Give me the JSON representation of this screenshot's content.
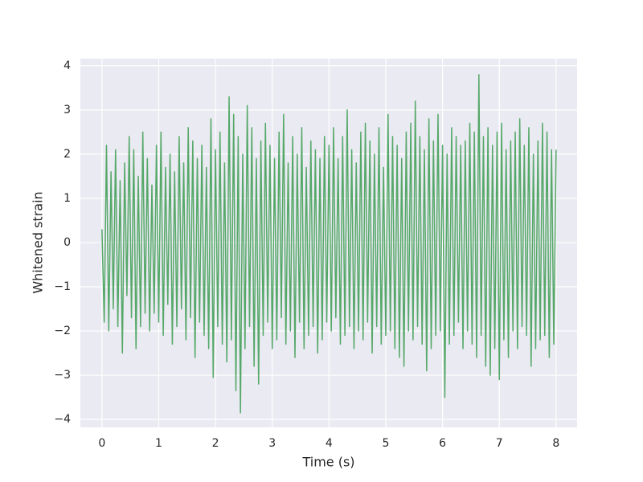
{
  "chart_data": {
    "type": "line",
    "xlabel": "Time (s)",
    "ylabel": "Whitened strain",
    "xlim": [
      -0.38,
      8.37
    ],
    "ylim": [
      -4.18,
      4.16
    ],
    "xticks": [
      0,
      1,
      2,
      3,
      4,
      5,
      6,
      7,
      8
    ],
    "yticks": [
      {
        "value": -4,
        "label": "−4"
      },
      {
        "value": -3,
        "label": "−3"
      },
      {
        "value": -2,
        "label": "−2"
      },
      {
        "value": -1,
        "label": "−1"
      },
      0,
      1,
      2,
      3,
      4
    ],
    "grid": true,
    "x": [
      0,
      0.04,
      0.08,
      0.12,
      0.16,
      0.2,
      0.24,
      0.28,
      0.32,
      0.36,
      0.4,
      0.44,
      0.48,
      0.52,
      0.56,
      0.6,
      0.64,
      0.68,
      0.72,
      0.76,
      0.8,
      0.84,
      0.88,
      0.92,
      0.96,
      1,
      1.04,
      1.08,
      1.12,
      1.16,
      1.2,
      1.24,
      1.28,
      1.32,
      1.36,
      1.4,
      1.44,
      1.48,
      1.52,
      1.56,
      1.6,
      1.64,
      1.68,
      1.72,
      1.76,
      1.8,
      1.84,
      1.88,
      1.92,
      1.96,
      2,
      2.04,
      2.08,
      2.12,
      2.16,
      2.2,
      2.24,
      2.28,
      2.32,
      2.36,
      2.4,
      2.44,
      2.48,
      2.52,
      2.56,
      2.6,
      2.64,
      2.68,
      2.72,
      2.76,
      2.8,
      2.84,
      2.88,
      2.92,
      2.96,
      3,
      3.04,
      3.08,
      3.12,
      3.16,
      3.2,
      3.24,
      3.28,
      3.32,
      3.36,
      3.4,
      3.44,
      3.48,
      3.52,
      3.56,
      3.6,
      3.64,
      3.68,
      3.72,
      3.76,
      3.8,
      3.84,
      3.88,
      3.92,
      3.96,
      4,
      4.04,
      4.08,
      4.12,
      4.16,
      4.2,
      4.24,
      4.28,
      4.32,
      4.36,
      4.4,
      4.44,
      4.48,
      4.52,
      4.56,
      4.6,
      4.64,
      4.68,
      4.72,
      4.76,
      4.8,
      4.84,
      4.88,
      4.92,
      4.96,
      5,
      5.04,
      5.08,
      5.12,
      5.16,
      5.2,
      5.24,
      5.28,
      5.32,
      5.36,
      5.4,
      5.44,
      5.48,
      5.52,
      5.56,
      5.6,
      5.64,
      5.68,
      5.72,
      5.76,
      5.8,
      5.84,
      5.88,
      5.92,
      5.96,
      6,
      6.04,
      6.08,
      6.12,
      6.16,
      6.2,
      6.24,
      6.28,
      6.32,
      6.36,
      6.4,
      6.44,
      6.48,
      6.52,
      6.56,
      6.6,
      6.64,
      6.68,
      6.72,
      6.76,
      6.8,
      6.84,
      6.88,
      6.92,
      6.96,
      7,
      7.04,
      7.08,
      7.12,
      7.16,
      7.2,
      7.24,
      7.28,
      7.32,
      7.36,
      7.4,
      7.44,
      7.48,
      7.52,
      7.56,
      7.6,
      7.64,
      7.68,
      7.72,
      7.76,
      7.8,
      7.84,
      7.88,
      7.92,
      7.96,
      8
    ],
    "series": [
      {
        "color": "#55a868",
        "values": [
          0.3,
          -1.8,
          2.2,
          -2.0,
          1.6,
          -1.5,
          2.1,
          -1.9,
          1.4,
          -2.5,
          1.8,
          -1.2,
          2.4,
          -1.7,
          2.1,
          -2.4,
          1.5,
          -1.9,
          2.5,
          -1.6,
          1.9,
          -2.0,
          1.3,
          -1.6,
          2.2,
          -1.8,
          2.5,
          -2.1,
          1.7,
          -1.4,
          2.0,
          -2.3,
          1.6,
          -1.9,
          2.4,
          -1.5,
          1.8,
          -2.2,
          2.6,
          -1.7,
          2.3,
          -2.6,
          1.9,
          -1.8,
          2.2,
          -2.1,
          1.7,
          -2.4,
          2.8,
          -3.05,
          2.1,
          -1.9,
          2.5,
          -2.3,
          1.8,
          -2.7,
          3.3,
          -2.2,
          2.9,
          -3.35,
          2.4,
          -3.85,
          2.0,
          -2.4,
          3.1,
          -1.9,
          2.6,
          -2.8,
          1.9,
          -3.2,
          2.3,
          -2.1,
          2.7,
          -1.8,
          2.2,
          -2.4,
          1.9,
          -2.2,
          2.5,
          -1.7,
          2.9,
          -2.3,
          1.8,
          -2.0,
          2.4,
          -2.6,
          2.0,
          -1.8,
          2.6,
          -2.4,
          1.7,
          -2.1,
          2.3,
          -1.9,
          2.1,
          -2.5,
          1.9,
          -2.2,
          2.4,
          -1.8,
          2.2,
          -2.0,
          2.6,
          -1.7,
          1.9,
          -2.3,
          2.4,
          -2.1,
          3.0,
          -1.9,
          2.1,
          -2.4,
          1.8,
          -2.0,
          2.5,
          -2.2,
          2.7,
          -1.8,
          2.3,
          -2.5,
          2.0,
          -1.9,
          2.6,
          -2.3,
          1.7,
          -2.1,
          2.9,
          -2.0,
          2.4,
          -2.4,
          2.2,
          -2.6,
          1.9,
          -2.8,
          2.5,
          -2.0,
          2.7,
          -2.2,
          3.2,
          -1.9,
          2.4,
          -2.3,
          2.1,
          -2.9,
          2.8,
          -2.4,
          2.3,
          -2.1,
          2.9,
          -2.0,
          2.2,
          -3.5,
          2.0,
          -2.3,
          2.6,
          -2.1,
          2.4,
          -1.8,
          2.2,
          -2.4,
          2.3,
          -2.0,
          2.7,
          -2.3,
          2.5,
          -2.6,
          3.8,
          -2.1,
          2.4,
          -2.8,
          2.6,
          -3.0,
          2.2,
          -2.4,
          2.5,
          -3.1,
          2.7,
          -2.2,
          2.1,
          -2.6,
          2.3,
          -2.0,
          2.5,
          -2.4,
          2.8,
          -1.9,
          2.2,
          -2.1,
          2.6,
          -2.8,
          2.0,
          -2.4,
          2.3,
          -2.2,
          2.7,
          -2.1,
          2.5,
          -2.6,
          2.1,
          -2.3,
          2.1
        ]
      }
    ]
  }
}
